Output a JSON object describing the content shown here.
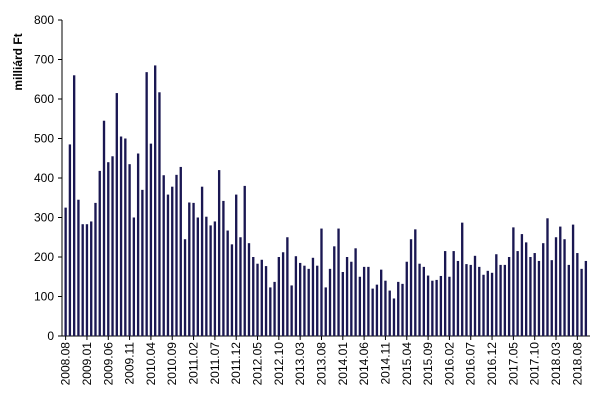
{
  "chart_data": {
    "type": "bar",
    "title": "",
    "xlabel": "",
    "ylabel": "milliárd Ft",
    "ylim": [
      0,
      800
    ],
    "yticks": [
      0,
      100,
      200,
      300,
      400,
      500,
      600,
      700,
      800
    ],
    "grid": false,
    "bar_color": "#1a1752",
    "x_tick_labels": [
      "2008.08",
      "2009.01",
      "2009.06",
      "2009.11",
      "2010.04",
      "2010.09",
      "2011.02",
      "2011.07",
      "2011.12",
      "2012.05",
      "2012.10",
      "2013.03",
      "2013.08",
      "2014.01",
      "2014.06",
      "2014.11",
      "2015.04",
      "2015.09",
      "2016.02",
      "2016.07",
      "2016.12",
      "2017.05",
      "2017.10",
      "2018.03",
      "2018.08"
    ],
    "series": [
      {
        "values": [
          325,
          485,
          660,
          345,
          283,
          283,
          290,
          337,
          418,
          545,
          440,
          455,
          615,
          505,
          500,
          435,
          300,
          462,
          370,
          668,
          487,
          685,
          617,
          407,
          358,
          378,
          408,
          428,
          245,
          338,
          337,
          300,
          378,
          302,
          280,
          290,
          420,
          342,
          267,
          232,
          358,
          250,
          380,
          235,
          200,
          183,
          193,
          177,
          123,
          137,
          200,
          212,
          250,
          128,
          202,
          185,
          178,
          170,
          198,
          178,
          272,
          123,
          170,
          227,
          272,
          162,
          200,
          188,
          222,
          150,
          175,
          175,
          120,
          130,
          168,
          140,
          115,
          95,
          137,
          132,
          188,
          245,
          270,
          183,
          175,
          153,
          140,
          142,
          152,
          215,
          150,
          215,
          190,
          287,
          182,
          180,
          203,
          175,
          155,
          165,
          160,
          207,
          180,
          180,
          200,
          275,
          215,
          258,
          237,
          200,
          210,
          190,
          235,
          298,
          192,
          250,
          277,
          245,
          180,
          282,
          210,
          170,
          190
        ]
      }
    ]
  }
}
